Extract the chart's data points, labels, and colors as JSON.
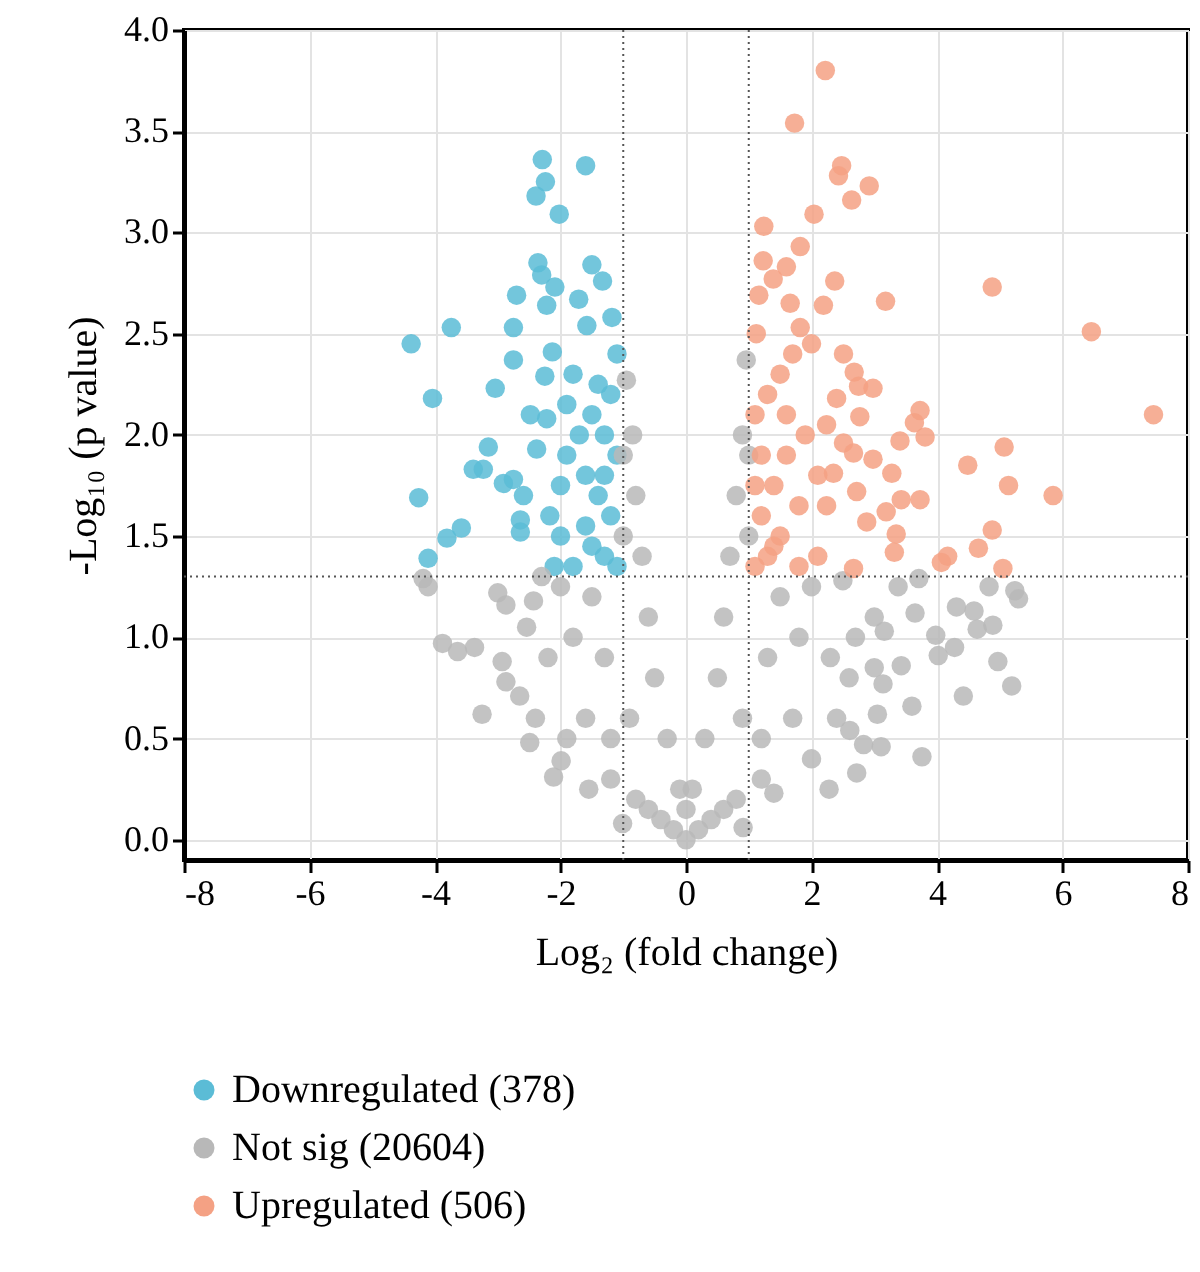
{
  "chart_data": {
    "type": "scatter",
    "xlabel": "Log₂ (fold change)",
    "ylabel": "-Log₁₀ (p value)",
    "xlim": [
      -8,
      8
    ],
    "xticks": [
      -8,
      -6,
      -4,
      -2,
      0,
      2,
      4,
      6,
      8
    ],
    "ylim": [
      -0.1,
      4.0
    ],
    "yticks": [
      {
        "value": 0,
        "label": "0.0"
      },
      {
        "value": 0.5,
        "label": "0.5"
      },
      {
        "value": 1,
        "label": "1.0"
      },
      {
        "value": 1.5,
        "label": "1.5"
      },
      {
        "value": 2,
        "label": "2.0"
      },
      {
        "value": 2.5,
        "label": "2.5"
      },
      {
        "value": 3,
        "label": "3.0"
      },
      {
        "value": 3.5,
        "label": "3.5"
      },
      {
        "value": 4,
        "label": "4.0"
      }
    ],
    "grid": true,
    "legend": "bottom",
    "marker": "circle",
    "ref_lines": [
      {
        "axis": "x",
        "value": -1,
        "color": "#555555",
        "line_style": "dotted"
      },
      {
        "axis": "x",
        "value": 1,
        "color": "#555555",
        "line_style": "dotted"
      },
      {
        "axis": "y",
        "value": 1.3,
        "color": "#555555",
        "line_style": "dotted"
      }
    ],
    "series": [
      {
        "name": "Downregulated (378)",
        "color": "#5bbcd6",
        "x": [
          -2.29,
          -1.6,
          -2.24,
          -2.39,
          -2.02,
          -2.36,
          -1.5,
          -2.3,
          -1.33,
          -2.09,
          -2.7,
          -1.71,
          -2.22,
          -1.18,
          -3.74,
          -2.75,
          -4.38,
          -1.58,
          -2.13,
          -2.75,
          -2.25,
          -3.04,
          -4.04,
          -2.48,
          -2.22,
          -3.15,
          -2.38,
          -3.39,
          -3.23,
          -2.91,
          -2.75,
          -4.26,
          -2.59,
          -2.17,
          -2.64,
          -3.58,
          -3.81,
          -4.11,
          -2.64,
          -1.1,
          -1.3,
          -1.5,
          -1.8,
          -2.1,
          -1.2,
          -1.4,
          -1.6,
          -1.9,
          -1.1,
          -1.3,
          -1.5,
          -1.7,
          -2.0,
          -1.2,
          -1.4,
          -1.8,
          -1.1,
          -1.6,
          -2.0,
          -1.9,
          -1.3
        ],
        "values": [
          3.36,
          3.33,
          3.25,
          3.18,
          3.09,
          2.85,
          2.84,
          2.79,
          2.76,
          2.73,
          2.69,
          2.67,
          2.64,
          2.58,
          2.53,
          2.53,
          2.45,
          2.54,
          2.41,
          2.37,
          2.29,
          2.23,
          2.18,
          2.1,
          2.08,
          1.94,
          1.93,
          1.83,
          1.83,
          1.76,
          1.78,
          1.69,
          1.7,
          1.6,
          1.58,
          1.54,
          1.49,
          1.39,
          1.52,
          1.35,
          1.4,
          1.45,
          1.35,
          1.35,
          1.6,
          1.7,
          1.8,
          1.9,
          1.9,
          2.0,
          2.1,
          2.0,
          1.75,
          2.2,
          2.25,
          2.3,
          2.4,
          1.55,
          1.5,
          2.15,
          1.8
        ]
      },
      {
        "name": "Not sig (20604)",
        "color": "#b8b8b8",
        "x": [
          0,
          -0.2,
          0.2,
          -0.4,
          0.4,
          -0.6,
          0.6,
          -0.8,
          0.8,
          -1.2,
          1.2,
          0,
          -0.1,
          0.1,
          -0.3,
          -0.5,
          -0.6,
          -0.7,
          -0.8,
          -0.85,
          -0.95,
          -1.0,
          -1.0,
          -1.5,
          -2.0,
          -2.3,
          -1.8,
          -1.3,
          -0.9,
          -2.2,
          -1.6,
          -2.4,
          -1.9,
          -1.2,
          0.3,
          0.5,
          0.6,
          0.7,
          0.8,
          0.9,
          0.96,
          1.0,
          1.0,
          1.5,
          2.0,
          2.5,
          1.8,
          1.3,
          0.9,
          2.3,
          1.7,
          2.4,
          2.0,
          1.2,
          3.0,
          2.7,
          2.6,
          3.0,
          -4.19,
          -4.11,
          -3.0,
          -2.87,
          -3.88,
          -3.64,
          -3.37,
          -2.93,
          -2.87,
          -3.25,
          -2.49,
          -2.11,
          -1.55,
          -1.99,
          -2.65,
          -2.54,
          -2.43,
          5.24,
          5.3,
          4.83,
          4.31,
          4.59,
          4.89,
          4.64,
          3.98,
          4.28,
          4.02,
          4.97,
          5.19,
          4.42,
          3.6,
          3.76,
          3.14,
          3.05,
          3.11,
          2.72,
          2.28,
          3.65,
          3.38,
          3.71,
          3.16,
          3.43,
          2.61,
          2.83,
          1.4,
          0.91,
          -1.01
        ],
        "values": [
          0,
          0.05,
          0.05,
          0.1,
          0.1,
          0.15,
          0.15,
          0.2,
          0.2,
          0.3,
          0.3,
          0.15,
          0.25,
          0.25,
          0.5,
          0.8,
          1.1,
          1.4,
          1.7,
          2.0,
          2.27,
          1.9,
          1.5,
          1.2,
          1.25,
          1.3,
          1.0,
          0.9,
          0.6,
          0.9,
          0.6,
          0.6,
          0.5,
          0.5,
          0.5,
          0.8,
          1.1,
          1.4,
          1.7,
          2.0,
          2.37,
          1.9,
          1.5,
          1.2,
          1.25,
          1.28,
          1.0,
          0.9,
          0.6,
          0.9,
          0.6,
          0.6,
          0.4,
          0.5,
          1.1,
          1.0,
          0.8,
          0.85,
          1.29,
          1.25,
          1.22,
          1.16,
          0.97,
          0.93,
          0.95,
          0.88,
          0.78,
          0.62,
          0.48,
          0.31,
          0.25,
          0.39,
          0.71,
          1.05,
          1.18,
          1.23,
          1.19,
          1.25,
          1.15,
          1.13,
          1.06,
          1.04,
          1.01,
          0.95,
          0.91,
          0.88,
          0.76,
          0.71,
          0.66,
          0.41,
          0.77,
          0.62,
          0.46,
          0.33,
          0.25,
          1.12,
          1.25,
          1.29,
          1.03,
          0.86,
          0.54,
          0.47,
          0.23,
          0.06,
          0.08
        ]
      },
      {
        "name": "Upregulated (506)",
        "color": "#f4a184",
        "x": [
          2.22,
          1.73,
          2.48,
          2.43,
          2.92,
          2.64,
          2.04,
          1.24,
          1.82,
          1.23,
          1.6,
          2.37,
          4.88,
          1.39,
          1.16,
          1.66,
          2.19,
          3.18,
          6.46,
          1.12,
          1.82,
          2.51,
          2.68,
          2.98,
          3.73,
          7.45,
          3.64,
          3.81,
          3.41,
          5.07,
          4.49,
          3.28,
          5.14,
          5.85,
          3.73,
          3.43,
          3.19,
          2.88,
          4.88,
          3.35,
          4.66,
          3.32,
          4.17,
          4.07,
          5.05,
          2.67,
          2.75,
          2.4,
          2.77,
          2.24,
          2.51,
          2.67,
          2.98,
          2.72,
          2.35,
          2.24,
          1.1,
          1.3,
          1.5,
          1.8,
          2.1,
          1.2,
          1.4,
          1.6,
          1.9,
          1.1,
          1.3,
          1.5,
          1.7,
          2.0,
          1.2,
          1.8,
          2.1,
          1.6,
          1.1,
          1.4
        ],
        "values": [
          3.8,
          3.54,
          3.33,
          3.28,
          3.23,
          3.16,
          3.09,
          3.03,
          2.93,
          2.86,
          2.83,
          2.76,
          2.73,
          2.77,
          2.69,
          2.65,
          2.64,
          2.66,
          2.51,
          2.5,
          2.53,
          2.4,
          2.31,
          2.23,
          2.12,
          2.1,
          2.06,
          1.99,
          1.97,
          1.94,
          1.85,
          1.81,
          1.75,
          1.7,
          1.68,
          1.68,
          1.62,
          1.57,
          1.53,
          1.51,
          1.44,
          1.42,
          1.4,
          1.37,
          1.34,
          1.34,
          2.24,
          2.18,
          2.09,
          2.05,
          1.96,
          1.91,
          1.88,
          1.72,
          1.81,
          1.65,
          1.35,
          1.4,
          1.5,
          1.35,
          1.4,
          1.6,
          1.75,
          1.9,
          2.0,
          2.1,
          2.2,
          2.3,
          2.4,
          2.45,
          1.9,
          1.65,
          1.8,
          2.1,
          1.75,
          1.45
        ]
      }
    ]
  }
}
